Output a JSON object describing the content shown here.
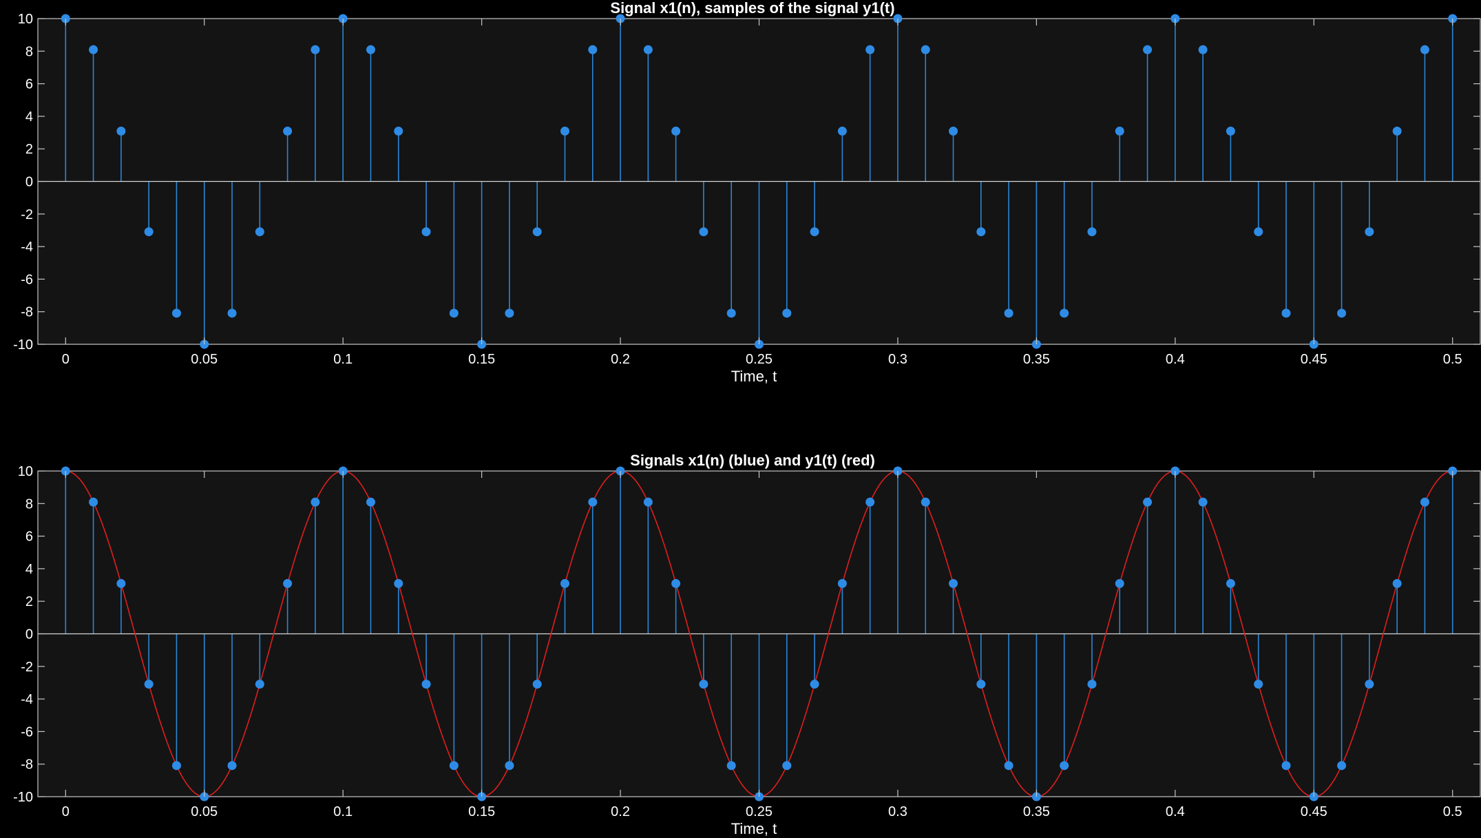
{
  "figure": {
    "background": "#000000",
    "axes_background": "#141414"
  },
  "chart_data": [
    {
      "type": "stem",
      "title": "Signal x1(n), samples of the signal y1(t)",
      "xlabel": "Time, t",
      "ylabel": "",
      "xlim": [
        -0.01,
        0.51
      ],
      "ylim": [
        -10,
        10
      ],
      "xticks": [
        0,
        0.05,
        0.1,
        0.15,
        0.2,
        0.25,
        0.3,
        0.35,
        0.4,
        0.45,
        0.5
      ],
      "xtick_labels": [
        "0",
        "0.05",
        "0.1",
        "0.15",
        "0.2",
        "0.25",
        "0.3",
        "0.35",
        "0.4",
        "0.45",
        "0.5"
      ],
      "yticks": [
        -10,
        -8,
        -6,
        -4,
        -2,
        0,
        2,
        4,
        6,
        8,
        10
      ],
      "ytick_labels": [
        "-10",
        "-8",
        "-6",
        "-4",
        "-2",
        "0",
        "2",
        "4",
        "6",
        "8",
        "10"
      ],
      "grid": false,
      "series": [
        {
          "name": "x1(n)",
          "kind": "stem",
          "color": "#2e8ce6",
          "x": [
            0,
            0.01,
            0.02,
            0.03,
            0.04,
            0.05,
            0.06,
            0.07,
            0.08,
            0.09,
            0.1,
            0.11,
            0.12,
            0.13,
            0.14,
            0.15,
            0.16,
            0.17,
            0.18,
            0.19,
            0.2,
            0.21,
            0.22,
            0.23,
            0.24,
            0.25,
            0.26,
            0.27,
            0.28,
            0.29,
            0.3,
            0.31,
            0.32,
            0.33,
            0.34,
            0.35,
            0.36,
            0.37,
            0.38,
            0.39,
            0.4,
            0.41,
            0.42,
            0.43,
            0.44,
            0.45,
            0.46,
            0.47,
            0.48,
            0.49,
            0.5
          ],
          "y": [
            10,
            8.09,
            3.09,
            -3.09,
            -8.09,
            -10,
            -8.09,
            -3.09,
            3.09,
            8.09,
            10,
            8.09,
            3.09,
            -3.09,
            -8.09,
            -10,
            -8.09,
            -3.09,
            3.09,
            8.09,
            10,
            8.09,
            3.09,
            -3.09,
            -8.09,
            -10,
            -8.09,
            -3.09,
            3.09,
            8.09,
            10,
            8.09,
            3.09,
            -3.09,
            -8.09,
            -10,
            -8.09,
            -3.09,
            3.09,
            8.09,
            10,
            8.09,
            3.09,
            -3.09,
            -8.09,
            -10,
            -8.09,
            -3.09,
            3.09,
            8.09,
            10
          ]
        }
      ]
    },
    {
      "type": "stem+line",
      "title": "Signals x1(n) (blue) and y1(t) (red)",
      "xlabel": "Time, t",
      "ylabel": "",
      "xlim": [
        -0.01,
        0.51
      ],
      "ylim": [
        -10,
        10
      ],
      "xticks": [
        0,
        0.05,
        0.1,
        0.15,
        0.2,
        0.25,
        0.3,
        0.35,
        0.4,
        0.45,
        0.5
      ],
      "xtick_labels": [
        "0",
        "0.05",
        "0.1",
        "0.15",
        "0.2",
        "0.25",
        "0.3",
        "0.35",
        "0.4",
        "0.45",
        "0.5"
      ],
      "yticks": [
        -10,
        -8,
        -6,
        -4,
        -2,
        0,
        2,
        4,
        6,
        8,
        10
      ],
      "ytick_labels": [
        "-10",
        "-8",
        "-6",
        "-4",
        "-2",
        "0",
        "2",
        "4",
        "6",
        "8",
        "10"
      ],
      "grid": false,
      "series": [
        {
          "name": "x1(n)",
          "kind": "stem",
          "color": "#2e8ce6",
          "x": [
            0,
            0.01,
            0.02,
            0.03,
            0.04,
            0.05,
            0.06,
            0.07,
            0.08,
            0.09,
            0.1,
            0.11,
            0.12,
            0.13,
            0.14,
            0.15,
            0.16,
            0.17,
            0.18,
            0.19,
            0.2,
            0.21,
            0.22,
            0.23,
            0.24,
            0.25,
            0.26,
            0.27,
            0.28,
            0.29,
            0.3,
            0.31,
            0.32,
            0.33,
            0.34,
            0.35,
            0.36,
            0.37,
            0.38,
            0.39,
            0.4,
            0.41,
            0.42,
            0.43,
            0.44,
            0.45,
            0.46,
            0.47,
            0.48,
            0.49,
            0.5
          ],
          "y": [
            10,
            8.09,
            3.09,
            -3.09,
            -8.09,
            -10,
            -8.09,
            -3.09,
            3.09,
            8.09,
            10,
            8.09,
            3.09,
            -3.09,
            -8.09,
            -10,
            -8.09,
            -3.09,
            3.09,
            8.09,
            10,
            8.09,
            3.09,
            -3.09,
            -8.09,
            -10,
            -8.09,
            -3.09,
            3.09,
            8.09,
            10,
            8.09,
            3.09,
            -3.09,
            -8.09,
            -10,
            -8.09,
            -3.09,
            3.09,
            8.09,
            10,
            8.09,
            3.09,
            -3.09,
            -8.09,
            -10,
            -8.09,
            -3.09,
            3.09,
            8.09,
            10
          ]
        },
        {
          "name": "y1(t)",
          "kind": "line",
          "color": "#e01e1e",
          "function": "10*cos(2*pi*10*t)",
          "amplitude": 10,
          "frequency_hz": 10,
          "t_range": [
            0,
            0.5
          ]
        }
      ]
    }
  ]
}
